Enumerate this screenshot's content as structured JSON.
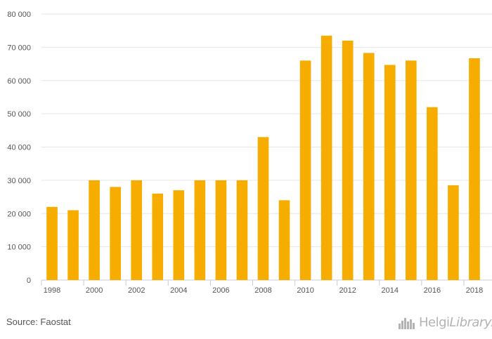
{
  "chart_data": {
    "type": "bar",
    "categories": [
      "1998",
      "1999",
      "2000",
      "2001",
      "2002",
      "2003",
      "2004",
      "2005",
      "2006",
      "2007",
      "2008",
      "2009",
      "2010",
      "2011",
      "2012",
      "2013",
      "2014",
      "2015",
      "2016",
      "2017",
      "2018"
    ],
    "values": [
      22000,
      21000,
      30000,
      28000,
      30000,
      26000,
      27000,
      30000,
      30000,
      30000,
      43000,
      24000,
      66000,
      73500,
      72000,
      68300,
      64700,
      66000,
      52000,
      28500,
      66700
    ],
    "x_tick_labels": [
      "1998",
      "2000",
      "2002",
      "2004",
      "2006",
      "2008",
      "2010",
      "2012",
      "2014",
      "2016",
      "2018"
    ],
    "y_ticks": [
      0,
      10000,
      20000,
      30000,
      40000,
      50000,
      60000,
      70000,
      80000
    ],
    "y_tick_labels": [
      "0",
      "10 000",
      "20 000",
      "30 000",
      "40 000",
      "50 000",
      "60 000",
      "70 000",
      "80 000"
    ],
    "ylim": [
      0,
      80000
    ],
    "title": "",
    "xlabel": "",
    "ylabel": "",
    "grid": true,
    "bar_color": "#f7ad00",
    "grid_color": "#e6e6e6"
  },
  "footer": {
    "source": "Source: Faostat",
    "logo_text_main": "Helgi",
    "logo_text_italic": "Library."
  }
}
